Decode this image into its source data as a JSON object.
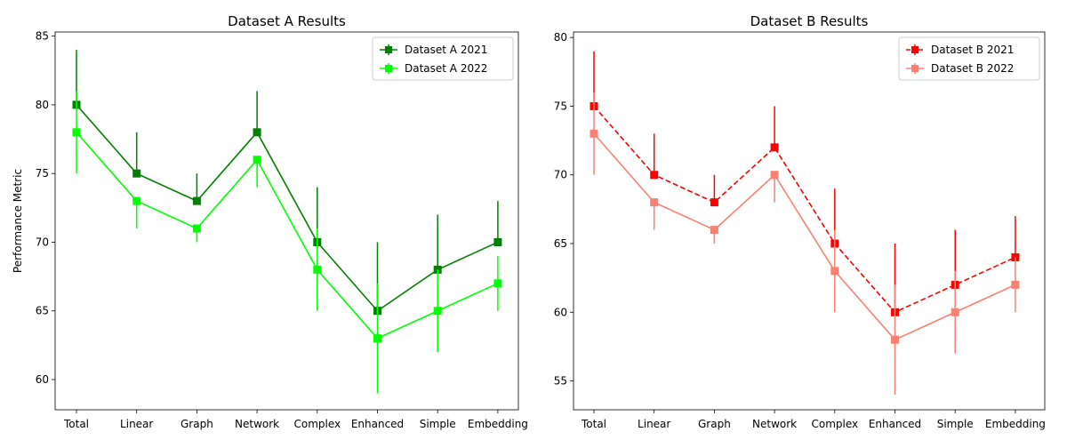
{
  "chart_data": [
    {
      "type": "line",
      "title": "Dataset A Results",
      "xlabel": "",
      "ylabel": "Performance Metric",
      "categories": [
        "Total",
        "Linear",
        "Graph",
        "Network",
        "Complex",
        "Enhanced",
        "Simple",
        "Embedding"
      ],
      "ylim": [
        57.8,
        85.3
      ],
      "yticks": [
        60,
        65,
        70,
        75,
        80,
        85
      ],
      "grid": false,
      "legend_position": "top-right",
      "series": [
        {
          "name": "Dataset A 2021",
          "color": "#008000",
          "linestyle": "solid",
          "marker": "square",
          "values": [
            80,
            75,
            73,
            78,
            70,
            65,
            68,
            70
          ],
          "err_upper": [
            4,
            3,
            2,
            3,
            4,
            5,
            4,
            3
          ],
          "err_lower": [
            0,
            0,
            0,
            0,
            0,
            0,
            0,
            0
          ]
        },
        {
          "name": "Dataset A 2022",
          "color": "#00ff00",
          "linestyle": "solid",
          "marker": "square",
          "values": [
            78,
            73,
            71,
            76,
            68,
            63,
            65,
            67
          ],
          "err_upper": [
            3,
            0,
            0,
            0,
            3,
            4,
            3,
            2
          ],
          "err_lower": [
            3,
            2,
            1,
            2,
            3,
            4,
            3,
            2
          ]
        }
      ]
    },
    {
      "type": "line",
      "title": "Dataset B Results",
      "xlabel": "",
      "ylabel": "",
      "categories": [
        "Total",
        "Linear",
        "Graph",
        "Network",
        "Complex",
        "Enhanced",
        "Simple",
        "Embedding"
      ],
      "ylim": [
        52.9,
        80.4
      ],
      "yticks": [
        55,
        60,
        65,
        70,
        75,
        80
      ],
      "grid": false,
      "legend_position": "top-right",
      "series": [
        {
          "name": "Dataset B 2021",
          "color": "#ff0000",
          "linestyle": "dashed",
          "marker": "square",
          "values": [
            75,
            70,
            68,
            72,
            65,
            60,
            62,
            64
          ],
          "err_upper": [
            4,
            3,
            2,
            3,
            4,
            5,
            4,
            3
          ],
          "err_lower": [
            0,
            0,
            0,
            0,
            0,
            0,
            0,
            0
          ]
        },
        {
          "name": "Dataset B 2022",
          "color": "#fa8072",
          "linestyle": "solid",
          "marker": "square",
          "values": [
            73,
            68,
            66,
            70,
            63,
            58,
            60,
            62
          ],
          "err_upper": [
            3,
            0,
            0,
            0,
            3,
            4,
            3,
            2
          ],
          "err_lower": [
            3,
            2,
            1,
            2,
            3,
            4,
            3,
            2
          ]
        }
      ]
    }
  ]
}
